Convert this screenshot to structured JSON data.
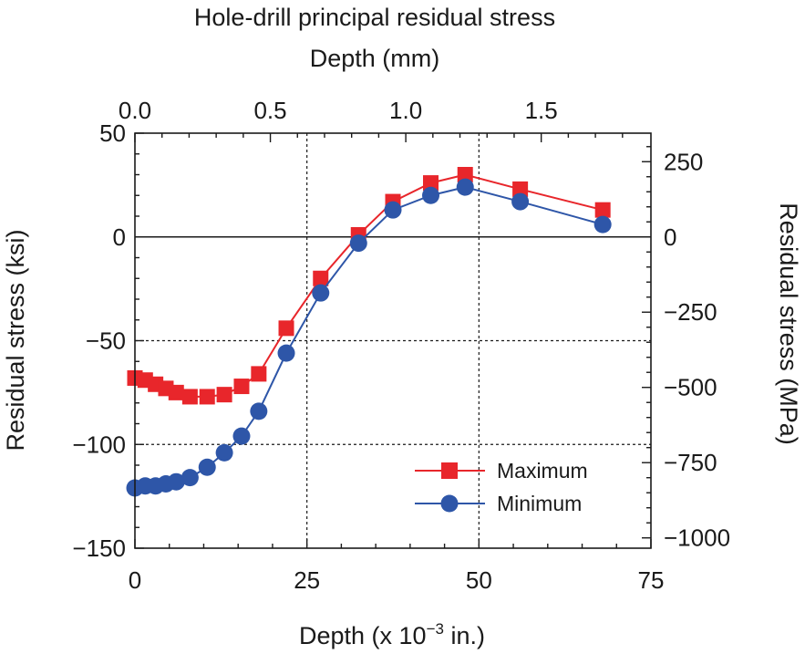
{
  "chart_data": {
    "type": "line",
    "title": "Hole-drill principal residual stress",
    "xlabel": "Depth (x 10",
    "xlabel_sup": "−3",
    "xlabel_tail": " in.)",
    "x_top_label": "Depth (mm)",
    "ylabel": "Residual stress (ksi)",
    "y_right_label": "Residual stress (MPa)",
    "xlim": [
      0,
      75
    ],
    "ylim": [
      -150,
      50
    ],
    "x_ticks": [
      0,
      25,
      50,
      75
    ],
    "x_tick_labels": [
      "0",
      "25",
      "50",
      "75"
    ],
    "y_ticks": [
      -150,
      -100,
      -50,
      0,
      50
    ],
    "y_tick_labels": [
      "−150",
      "−100",
      "−50",
      "0",
      "50"
    ],
    "x_top_ticks_mm": [
      0.0,
      0.5,
      1.0,
      1.5
    ],
    "x_top_tick_labels": [
      "0.0",
      "0.5",
      "1.0",
      "1.5"
    ],
    "y_right_ticks_mpa": [
      -1000,
      -750,
      -500,
      -250,
      0,
      250
    ],
    "y_right_tick_labels": [
      "−1000",
      "−750",
      "−500",
      "−250",
      "0",
      "250"
    ],
    "grid": "dotted at x=25, x=50, y=-50, y=-100",
    "zero_line": 0,
    "legend_position": "lower-right",
    "series": [
      {
        "name": "Maximum",
        "color": "#e8262b",
        "marker": "square",
        "x": [
          0,
          1.5,
          3,
          4.5,
          6,
          8,
          10.5,
          13,
          15.5,
          18,
          22,
          27,
          32.5,
          37.5,
          43,
          48,
          56,
          68
        ],
        "values": [
          -68,
          -69,
          -71,
          -73,
          -75,
          -77,
          -77,
          -76,
          -72,
          -66,
          -44,
          -20,
          1,
          17,
          26,
          30,
          23,
          13
        ]
      },
      {
        "name": "Minimum",
        "color": "#2e56a8",
        "marker": "circle",
        "x": [
          0,
          1.5,
          3,
          4.5,
          6,
          8,
          10.5,
          13,
          15.5,
          18,
          22,
          27,
          32.5,
          37.5,
          43,
          48,
          56,
          68
        ],
        "values": [
          -121,
          -120,
          -120,
          -119,
          -118,
          -116,
          -111,
          -104,
          -96,
          -84,
          -56,
          -27,
          -3,
          13,
          20,
          24,
          17,
          6
        ]
      }
    ]
  }
}
